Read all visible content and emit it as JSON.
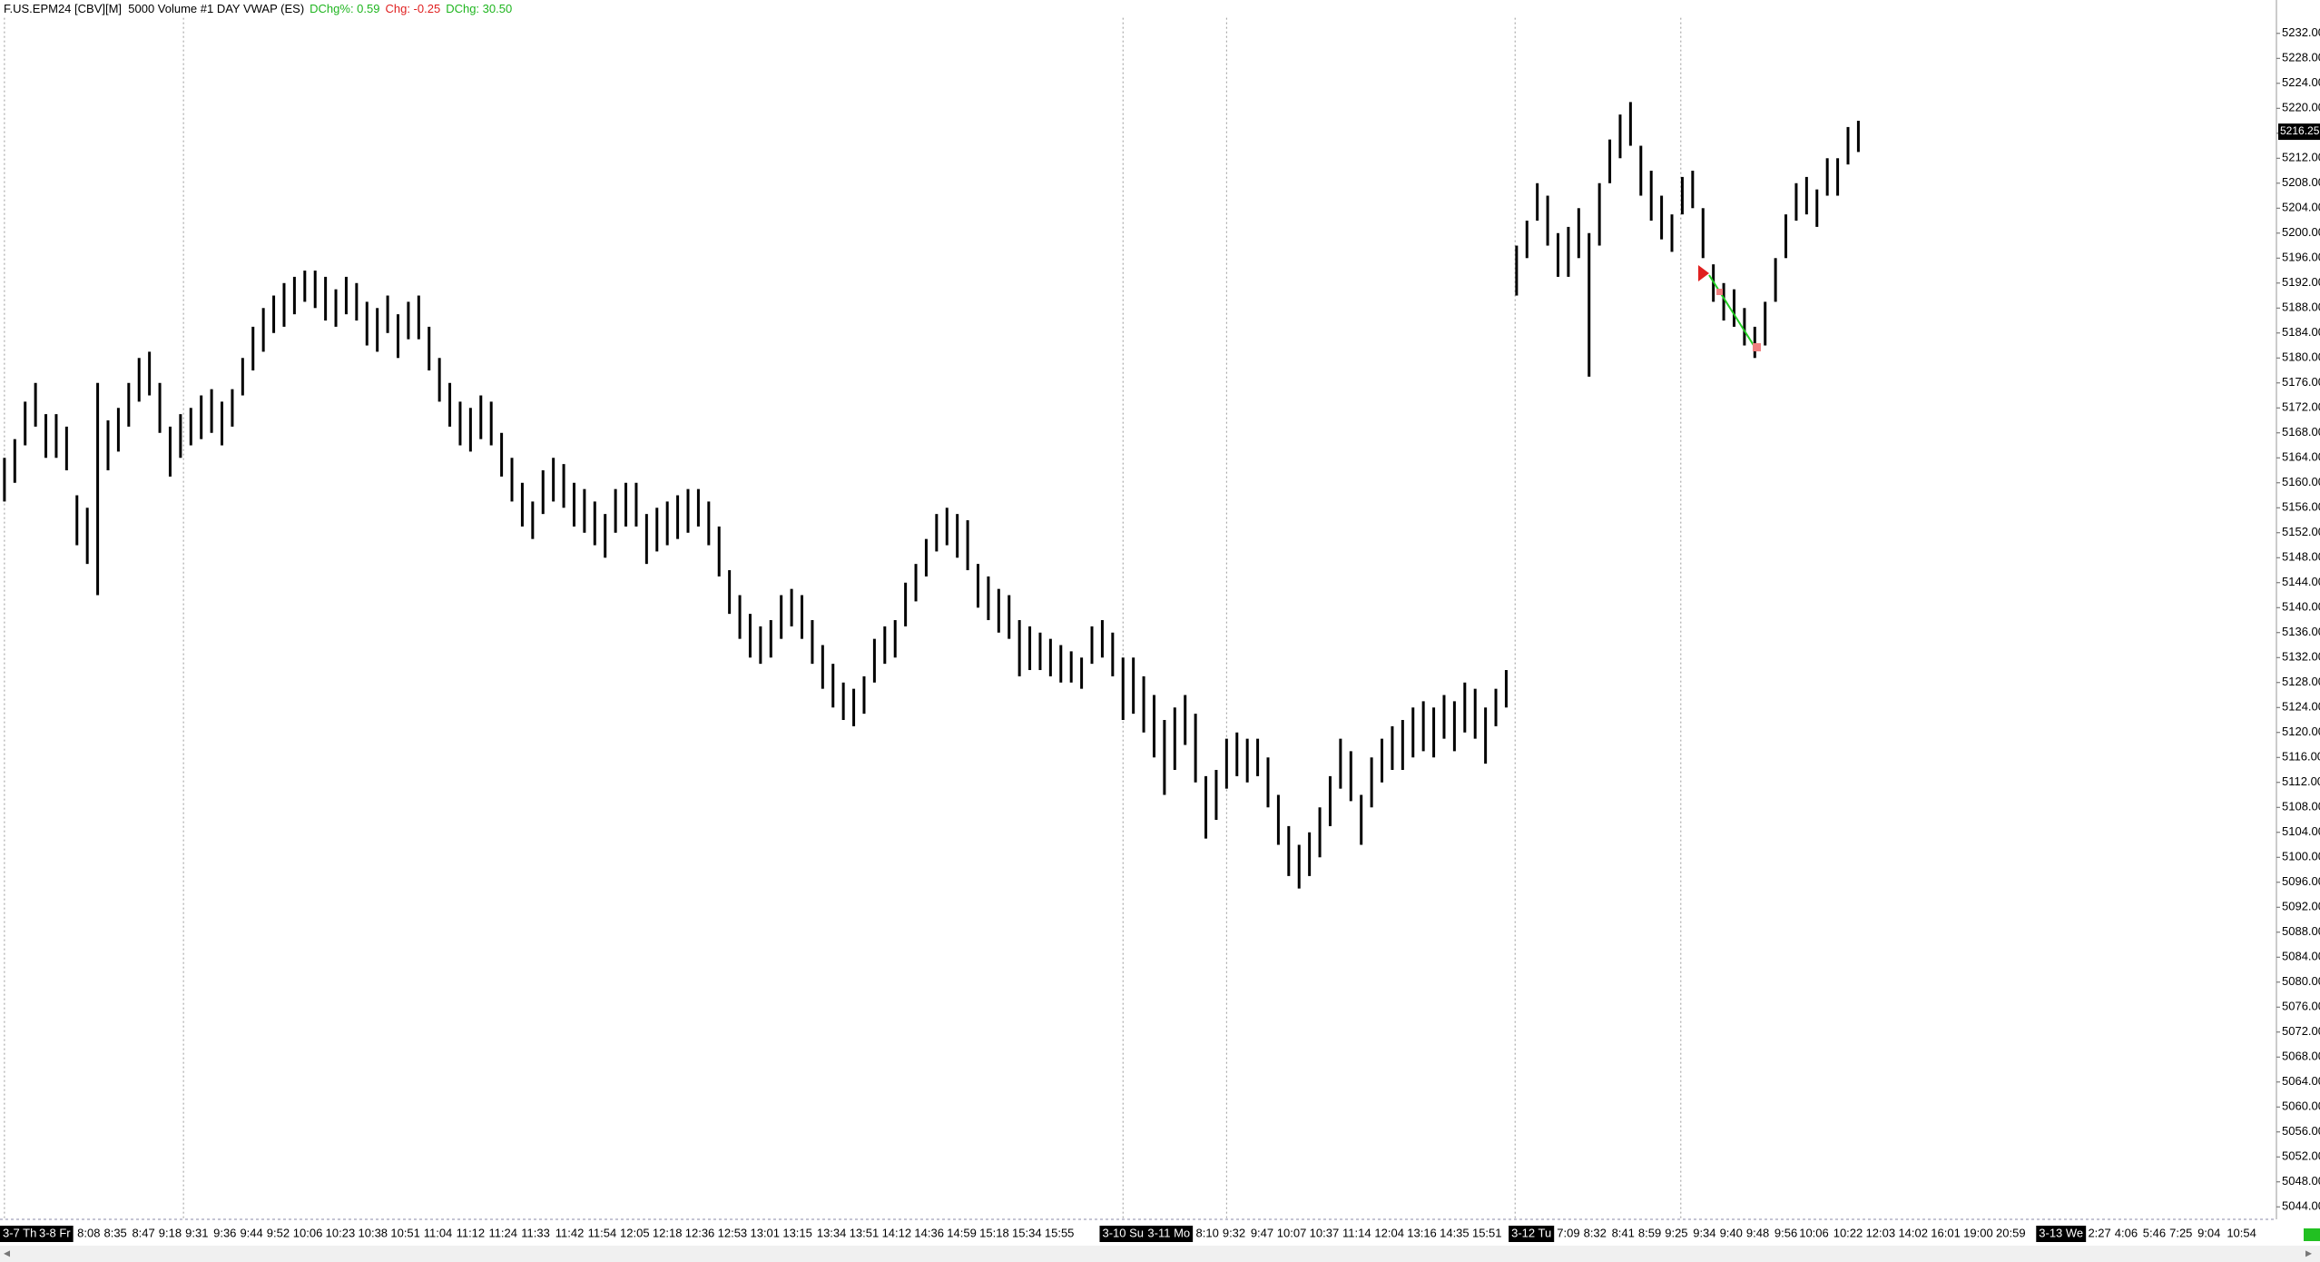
{
  "chart_data": {
    "type": "ohlc",
    "title": "F.US.EPM24 [CBV][M]  5000 Volume #1 DAY VWAP (ES)",
    "stats": [
      {
        "text": "DChg%: 0.59",
        "color": "#1fb51f"
      },
      {
        "text": "Chg: -0.25",
        "color": "#e02020"
      },
      {
        "text": "DChg: 30.50",
        "color": "#1fb51f"
      }
    ],
    "bar_color": "#000000",
    "bars": [
      [
        5164,
        5157
      ],
      [
        5167,
        5160
      ],
      [
        5173,
        5166
      ],
      [
        5176,
        5169
      ],
      [
        5171,
        5164
      ],
      [
        5171,
        5164
      ],
      [
        5169,
        5162
      ],
      [
        5158,
        5150
      ],
      [
        5156,
        5147
      ],
      [
        5176,
        5142
      ],
      [
        5170,
        5162
      ],
      [
        5172,
        5165
      ],
      [
        5176,
        5169
      ],
      [
        5180,
        5173
      ],
      [
        5181,
        5174
      ],
      [
        5176,
        5168
      ],
      [
        5169,
        5161
      ],
      [
        5171,
        5164
      ],
      [
        5172,
        5166
      ],
      [
        5174,
        5167
      ],
      [
        5175,
        5168
      ],
      [
        5173,
        5166
      ],
      [
        5175,
        5169
      ],
      [
        5180,
        5174
      ],
      [
        5185,
        5178
      ],
      [
        5188,
        5181
      ],
      [
        5190,
        5184
      ],
      [
        5192,
        5185
      ],
      [
        5193,
        5187
      ],
      [
        5194,
        5189
      ],
      [
        5194,
        5188
      ],
      [
        5193,
        5186
      ],
      [
        5191,
        5185
      ],
      [
        5193,
        5187
      ],
      [
        5192,
        5186
      ],
      [
        5189,
        5182
      ],
      [
        5188,
        5181
      ],
      [
        5190,
        5184
      ],
      [
        5187,
        5180
      ],
      [
        5189,
        5183
      ],
      [
        5190,
        5183
      ],
      [
        5185,
        5178
      ],
      [
        5180,
        5173
      ],
      [
        5176,
        5169
      ],
      [
        5173,
        5166
      ],
      [
        5172,
        5165
      ],
      [
        5174,
        5167
      ],
      [
        5173,
        5166
      ],
      [
        5168,
        5161
      ],
      [
        5164,
        5157
      ],
      [
        5160,
        5153
      ],
      [
        5157,
        5151
      ],
      [
        5162,
        5155
      ],
      [
        5164,
        5157
      ],
      [
        5163,
        5156
      ],
      [
        5160,
        5153
      ],
      [
        5159,
        5152
      ],
      [
        5157,
        5150
      ],
      [
        5155,
        5148
      ],
      [
        5159,
        5152
      ],
      [
        5160,
        5153
      ],
      [
        5160,
        5153
      ],
      [
        5155,
        5147
      ],
      [
        5156,
        5149
      ],
      [
        5157,
        5150
      ],
      [
        5158,
        5151
      ],
      [
        5159,
        5152
      ],
      [
        5159,
        5153
      ],
      [
        5157,
        5150
      ],
      [
        5153,
        5145
      ],
      [
        5146,
        5139
      ],
      [
        5142,
        5135
      ],
      [
        5139,
        5132
      ],
      [
        5137,
        5131
      ],
      [
        5138,
        5132
      ],
      [
        5142,
        5135
      ],
      [
        5143,
        5137
      ],
      [
        5142,
        5135
      ],
      [
        5138,
        5131
      ],
      [
        5134,
        5127
      ],
      [
        5131,
        5124
      ],
      [
        5128,
        5122
      ],
      [
        5127,
        5121
      ],
      [
        5129,
        5123
      ],
      [
        5135,
        5128
      ],
      [
        5137,
        5131
      ],
      [
        5138,
        5132
      ],
      [
        5144,
        5137
      ],
      [
        5147,
        5141
      ],
      [
        5151,
        5145
      ],
      [
        5155,
        5149
      ],
      [
        5156,
        5150
      ],
      [
        5155,
        5148
      ],
      [
        5154,
        5146
      ],
      [
        5147,
        5140
      ],
      [
        5145,
        5138
      ],
      [
        5143,
        5136
      ],
      [
        5142,
        5135
      ],
      [
        5138,
        5129
      ],
      [
        5137,
        5130
      ],
      [
        5136,
        5130
      ],
      [
        5135,
        5129
      ],
      [
        5134,
        5128
      ],
      [
        5133,
        5128
      ],
      [
        5132,
        5127
      ],
      [
        5137,
        5131
      ],
      [
        5138,
        5132
      ],
      [
        5136,
        5129
      ],
      [
        5132,
        5122
      ],
      [
        5132,
        5123
      ],
      [
        5129,
        5120
      ],
      [
        5126,
        5116
      ],
      [
        5122,
        5110
      ],
      [
        5124,
        5114
      ],
      [
        5126,
        5118
      ],
      [
        5123,
        5112
      ],
      [
        5113,
        5103
      ],
      [
        5114,
        5106
      ],
      [
        5119,
        5111
      ],
      [
        5120,
        5113
      ],
      [
        5119,
        5112
      ],
      [
        5119,
        5113
      ],
      [
        5116,
        5108
      ],
      [
        5110,
        5102
      ],
      [
        5105,
        5097
      ],
      [
        5102,
        5095
      ],
      [
        5104,
        5097
      ],
      [
        5108,
        5100
      ],
      [
        5113,
        5105
      ],
      [
        5119,
        5111
      ],
      [
        5117,
        5109
      ],
      [
        5110,
        5102
      ],
      [
        5116,
        5108
      ],
      [
        5119,
        5112
      ],
      [
        5121,
        5114
      ],
      [
        5122,
        5114
      ],
      [
        5124,
        5116
      ],
      [
        5125,
        5117
      ],
      [
        5124,
        5116
      ],
      [
        5126,
        5119
      ],
      [
        5125,
        5117
      ],
      [
        5128,
        5120
      ],
      [
        5127,
        5119
      ],
      [
        5124,
        5115
      ],
      [
        5127,
        5121
      ],
      [
        5130,
        5124
      ],
      [
        5198,
        5190
      ],
      [
        5202,
        5196
      ],
      [
        5208,
        5202
      ],
      [
        5206,
        5198
      ],
      [
        5200,
        5193
      ],
      [
        5201,
        5193
      ],
      [
        5204,
        5196
      ],
      [
        5200,
        5177
      ],
      [
        5208,
        5198
      ],
      [
        5215,
        5208
      ],
      [
        5219,
        5212
      ],
      [
        5221,
        5214
      ],
      [
        5214,
        5206
      ],
      [
        5210,
        5202
      ],
      [
        5206,
        5199
      ],
      [
        5203,
        5197
      ],
      [
        5209,
        5203
      ],
      [
        5210,
        5204
      ],
      [
        5204,
        5196
      ],
      [
        5195,
        5189
      ],
      [
        5192,
        5186
      ],
      [
        5191,
        5185
      ],
      [
        5188,
        5182
      ],
      [
        5185,
        5180
      ],
      [
        5189,
        5182
      ],
      [
        5196,
        5189
      ],
      [
        5203,
        5196
      ],
      [
        5208,
        5202
      ],
      [
        5209,
        5203
      ],
      [
        5207,
        5201
      ],
      [
        5212,
        5206
      ],
      [
        5212,
        5206
      ],
      [
        5217,
        5211
      ],
      [
        5218,
        5213
      ]
    ],
    "ylim": [
      5042,
      5234.5
    ],
    "yticks": [
      {
        "value": 5232,
        "label": "5232.00"
      },
      {
        "value": 5228,
        "label": "5228.00"
      },
      {
        "value": 5224,
        "label": "5224.00"
      },
      {
        "value": 5220,
        "label": "5220.00"
      },
      {
        "value": 5216,
        "label": "5216.00"
      },
      {
        "value": 5212,
        "label": "5212.00"
      },
      {
        "value": 5208,
        "label": "5208.00"
      },
      {
        "value": 5204,
        "label": "5204.00"
      },
      {
        "value": 5200,
        "label": "5200.00"
      },
      {
        "value": 5196,
        "label": "5196.00"
      },
      {
        "value": 5192,
        "label": "5192.00"
      },
      {
        "value": 5188,
        "label": "5188.00"
      },
      {
        "value": 5184,
        "label": "5184.00"
      },
      {
        "value": 5180,
        "label": "5180.00"
      },
      {
        "value": 5176,
        "label": "5176.00"
      },
      {
        "value": 5172,
        "label": "5172.00"
      },
      {
        "value": 5168,
        "label": "5168.00"
      },
      {
        "value": 5164,
        "label": "5164.00"
      },
      {
        "value": 5160,
        "label": "5160.00"
      },
      {
        "value": 5156,
        "label": "5156.00"
      },
      {
        "value": 5152,
        "label": "5152.00"
      },
      {
        "value": 5148,
        "label": "5148.00"
      },
      {
        "value": 5144,
        "label": "5144.00"
      },
      {
        "value": 5140,
        "label": "5140.00"
      },
      {
        "value": 5136,
        "label": "5136.00"
      },
      {
        "value": 5132,
        "label": "5132.00"
      },
      {
        "value": 5128,
        "label": "5128.00"
      },
      {
        "value": 5124,
        "label": "5124.00"
      },
      {
        "value": 5120,
        "label": "5120.00"
      },
      {
        "value": 5116,
        "label": "5116.00"
      },
      {
        "value": 5112,
        "label": "5112.00"
      },
      {
        "value": 5108,
        "label": "5108.00"
      },
      {
        "value": 5104,
        "label": "5104.00"
      },
      {
        "value": 5100,
        "label": "5100.00"
      },
      {
        "value": 5096,
        "label": "5096.00"
      },
      {
        "value": 5092,
        "label": "5092.00"
      },
      {
        "value": 5088,
        "label": "5088.00"
      },
      {
        "value": 5084,
        "label": "5084.00"
      },
      {
        "value": 5080,
        "label": "5080.00"
      },
      {
        "value": 5076,
        "label": "5076.00"
      },
      {
        "value": 5072,
        "label": "5072.00"
      },
      {
        "value": 5068,
        "label": "5068.00"
      },
      {
        "value": 5064,
        "label": "5064.00"
      },
      {
        "value": 5060,
        "label": "5060.00"
      },
      {
        "value": 5056,
        "label": "5056.00"
      },
      {
        "value": 5052,
        "label": "5052.00"
      },
      {
        "value": 5048,
        "label": "5048.00"
      },
      {
        "value": 5044,
        "label": "5044.00"
      }
    ],
    "last_price": {
      "value": 5216.25,
      "label": "5216.25"
    },
    "x_labels": [
      "3-7 Th",
      "3-8 Fr",
      "8:08",
      "8:35",
      "8:47",
      "9:18",
      "9:31",
      "9:36",
      "9:44",
      "9:52",
      "10:06",
      "10:23",
      "10:38",
      "10:51",
      "11:04",
      "11:12",
      "11:24",
      "11:33",
      "11:42",
      "11:54",
      "12:05",
      "12:18",
      "12:36",
      "12:53",
      "13:01",
      "13:15",
      "13:34",
      "13:51",
      "14:12",
      "14:36",
      "14:59",
      "15:18",
      "15:34",
      "15:55",
      "3-10 Su",
      "3-11 Mo",
      "8:10",
      "9:32",
      "9:47",
      "10:07",
      "10:37",
      "11:14",
      "12:04",
      "13:16",
      "14:35",
      "15:51",
      "3-12 Tu",
      "7:09",
      "8:32",
      "8:41",
      "8:59",
      "9:25",
      "9:34",
      "9:40",
      "9:48",
      "9:56",
      "10:06",
      "10:22",
      "12:03",
      "14:02",
      "16:01",
      "19:00",
      "20:59",
      "3-13 We",
      "2:27",
      "4:06",
      "5:46",
      "7:25",
      "9:04",
      "10:54"
    ]
  }
}
